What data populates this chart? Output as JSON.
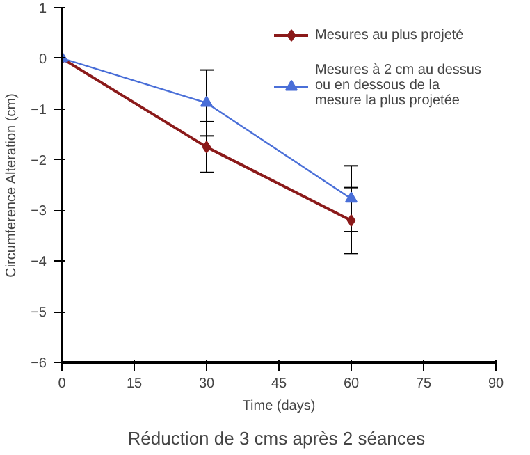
{
  "chart_data": {
    "type": "line",
    "xlabel": "Time (days)",
    "ylabel": "Circumference Alteration (cm)",
    "x": [
      0,
      30,
      60
    ],
    "series": [
      {
        "name": "Mesures au plus projeté",
        "color": "#8b1a1a",
        "values": [
          0,
          -1.75,
          -3.2
        ],
        "errors": [
          null,
          0.5,
          0.65
        ],
        "marker": "diamond"
      },
      {
        "name": "Mesures à 2 cm au dessus\nou en dessous de la\nmesure la plus projetée",
        "color": "#4a6fd8",
        "values": [
          0,
          -0.88,
          -2.77
        ],
        "errors": [
          null,
          0.65,
          0.65
        ],
        "marker": "triangle"
      }
    ],
    "xlim": [
      0,
      90
    ],
    "xticks": [
      0,
      15,
      30,
      45,
      60,
      75,
      90
    ],
    "ylim": [
      -6,
      1
    ],
    "yticks": [
      -6,
      -5,
      -4,
      -3,
      -2,
      -1,
      0,
      1
    ],
    "grid": false,
    "legend": "top right",
    "annotations": [
      "Réduction  de 3 cms après 2 séances"
    ]
  }
}
